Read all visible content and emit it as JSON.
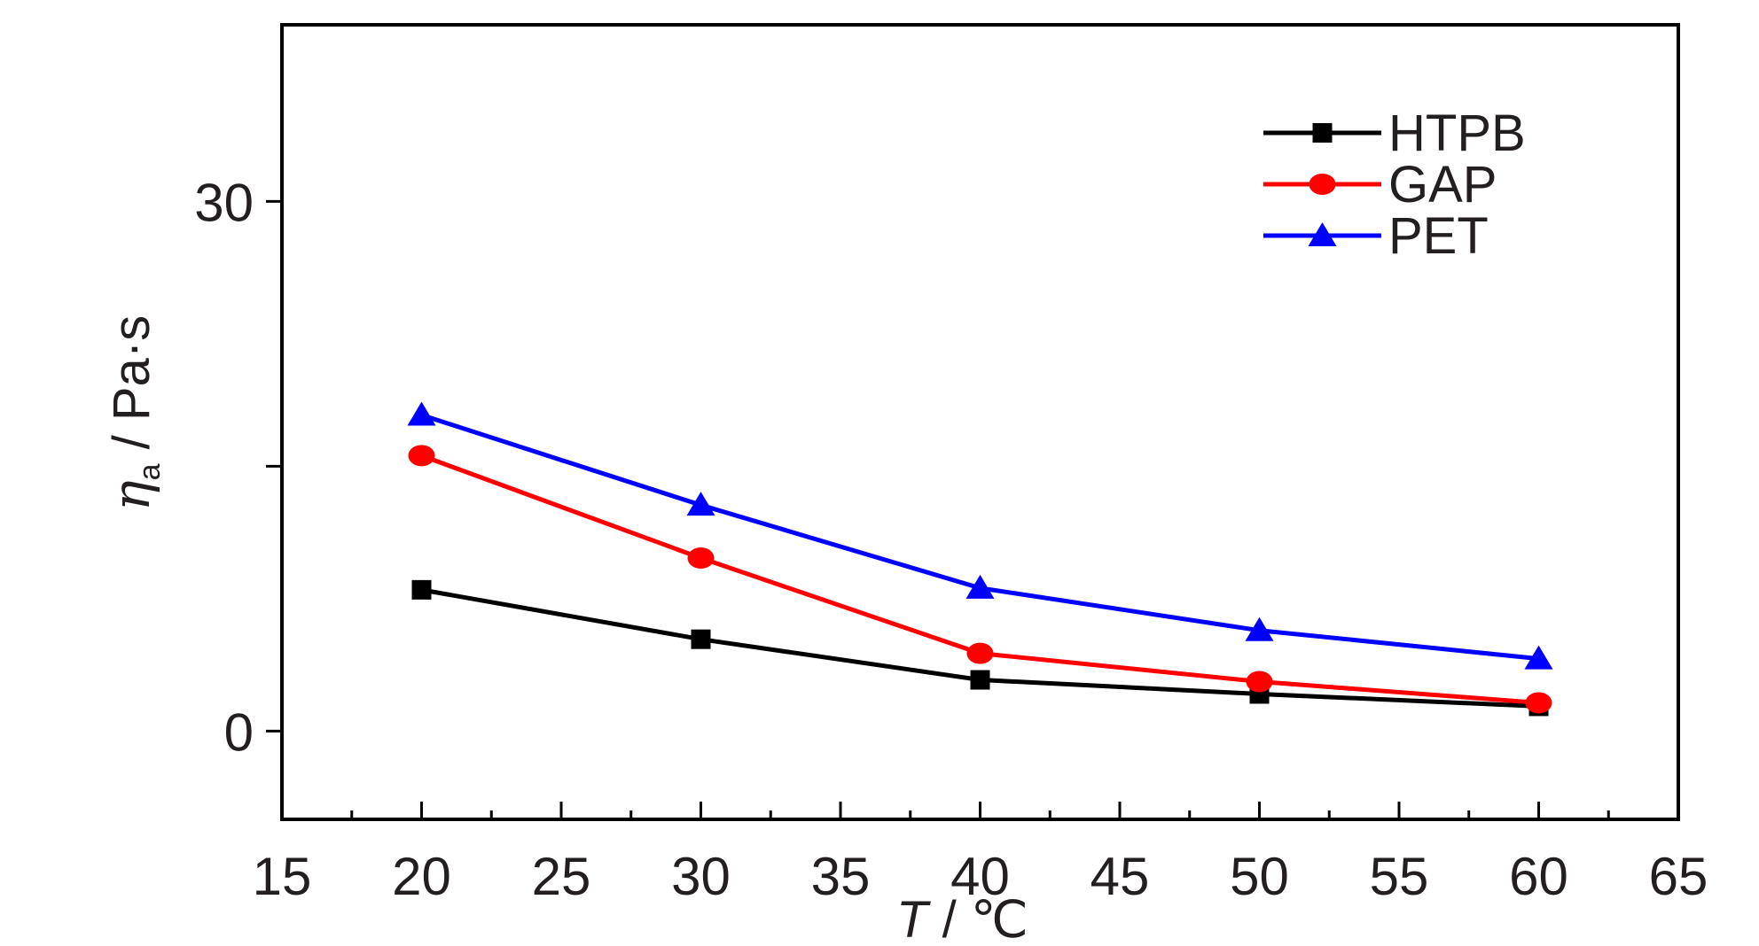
{
  "chart_data": {
    "type": "line",
    "x_axis": {
      "label_symbol": "T",
      "label_unit": "/ ℃",
      "range": [
        15,
        65
      ],
      "major_ticks": [
        15,
        20,
        25,
        30,
        35,
        40,
        45,
        50,
        55,
        60,
        65
      ],
      "tick_labels": [
        "15",
        "20",
        "25",
        "30",
        "35",
        "40",
        "45",
        "50",
        "55",
        "60",
        "65"
      ],
      "minor_step": 2.5
    },
    "y_axis": {
      "label_symbol": "η",
      "label_subscript": "a",
      "label_unit": "/ Pa·s",
      "range": [
        -5,
        40
      ],
      "major_ticks": [
        0,
        15,
        30
      ],
      "tick_labels": [
        "0",
        "",
        "30"
      ]
    },
    "x": [
      20,
      30,
      40,
      50,
      60
    ],
    "series": [
      {
        "name": "HTPB",
        "color": "#000000",
        "marker": "square",
        "values": [
          8.0,
          5.2,
          2.9,
          2.1,
          1.4
        ]
      },
      {
        "name": "GAP",
        "color": "#ff0000",
        "marker": "circle",
        "values": [
          15.6,
          9.8,
          4.4,
          2.8,
          1.6
        ]
      },
      {
        "name": "PET",
        "color": "#0000ff",
        "marker": "triangle",
        "values": [
          17.9,
          12.8,
          8.1,
          5.7,
          4.1
        ]
      }
    ],
    "legend_position": "top-right",
    "grid": false
  }
}
